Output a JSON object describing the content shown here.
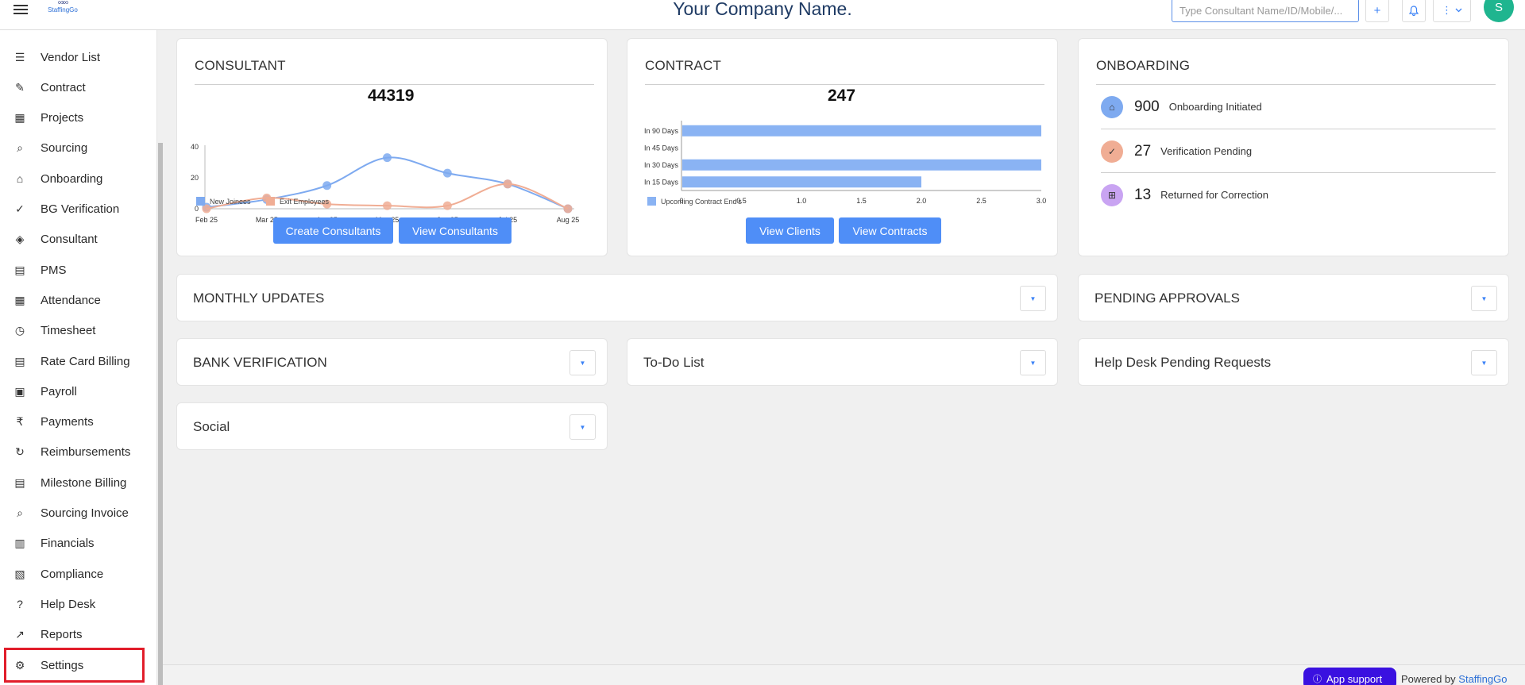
{
  "header": {
    "logo_text": "StaffingGo",
    "company": "Your Company Name.",
    "search_placeholder": "Type Consultant Name/ID/Mobile/...",
    "avatar_initial": "S"
  },
  "sidebar": {
    "items": [
      {
        "label": "Vendor List",
        "icon": "vendor-list-icon"
      },
      {
        "label": "Contract",
        "icon": "contract-icon"
      },
      {
        "label": "Projects",
        "icon": "projects-icon"
      },
      {
        "label": "Sourcing",
        "icon": "sourcing-icon"
      },
      {
        "label": "Onboarding",
        "icon": "onboarding-icon"
      },
      {
        "label": "BG Verification",
        "icon": "bg-verification-icon"
      },
      {
        "label": "Consultant",
        "icon": "consultant-icon"
      },
      {
        "label": "PMS",
        "icon": "pms-icon"
      },
      {
        "label": "Attendance",
        "icon": "calendar-icon"
      },
      {
        "label": "Timesheet",
        "icon": "clock-icon"
      },
      {
        "label": "Rate Card Billing",
        "icon": "billing-icon"
      },
      {
        "label": "Payroll",
        "icon": "payroll-icon"
      },
      {
        "label": "Payments",
        "icon": "rupee-icon"
      },
      {
        "label": "Reimbursements",
        "icon": "reimbursement-icon"
      },
      {
        "label": "Milestone Billing",
        "icon": "milestone-icon"
      },
      {
        "label": "Sourcing Invoice",
        "icon": "invoice-icon"
      },
      {
        "label": "Financials",
        "icon": "chart-icon"
      },
      {
        "label": "Compliance",
        "icon": "compliance-icon"
      },
      {
        "label": "Help Desk",
        "icon": "help-icon"
      },
      {
        "label": "Reports",
        "icon": "reports-icon"
      },
      {
        "label": "Settings",
        "icon": "gear-icon"
      }
    ]
  },
  "consultant": {
    "title": "CONSULTANT",
    "total": "44319",
    "create_label": "Create Consultants",
    "view_label": "View Consultants"
  },
  "contract": {
    "title": "CONTRACT",
    "total": "247",
    "view_clients_label": "View Clients",
    "view_contracts_label": "View Contracts"
  },
  "onboarding": {
    "title": "ONBOARDING",
    "rows": [
      {
        "value": "900",
        "label": "Onboarding Initiated",
        "color": "#7eaaf0"
      },
      {
        "value": "27",
        "label": "Verification Pending",
        "color": "#f0ad94"
      },
      {
        "value": "13",
        "label": "Returned for Correction",
        "color": "#c9a4f2"
      }
    ]
  },
  "panels": {
    "monthly_updates": "MONTHLY UPDATES",
    "pending_approvals": "PENDING APPROVALS",
    "bank_verification": "BANK VERIFICATION",
    "todo": "To-Do List",
    "helpdesk": "Help Desk Pending Requests",
    "social": "Social"
  },
  "footer": {
    "app_support": "App support",
    "powered_by": "Powered by",
    "brand": "StaffingGo"
  },
  "chart_data": [
    {
      "type": "line",
      "title": "44319",
      "x": [
        "Feb 25",
        "Mar 25",
        "Apr 25",
        "May 25",
        "Jun 25",
        "Jul 25",
        "Aug 25"
      ],
      "series": [
        {
          "name": "New Joinees",
          "values": [
            1,
            6,
            15,
            33,
            23,
            16,
            0
          ],
          "color": "#7eaaf0"
        },
        {
          "name": "Exit Employees",
          "values": [
            0,
            7,
            3,
            2,
            2,
            16,
            0
          ],
          "color": "#f0ad94"
        }
      ],
      "ylim": [
        0,
        40
      ],
      "yticks": [
        0,
        20,
        40
      ],
      "legend": "bottom-left"
    },
    {
      "type": "bar",
      "orientation": "horizontal",
      "title": "247",
      "categories": [
        "In 90 Days",
        "In 45 Days",
        "In 30 Days",
        "In 15 Days"
      ],
      "series": [
        {
          "name": "Upcoming Contract End's",
          "values": [
            3,
            0,
            3,
            2
          ],
          "color": "#8ab3f3"
        }
      ],
      "xlim": [
        0,
        3.0
      ],
      "xticks": [
        "0",
        "0.5",
        "1.0",
        "1.5",
        "2.0",
        "2.5",
        "3.0"
      ],
      "legend": "bottom-left"
    }
  ]
}
